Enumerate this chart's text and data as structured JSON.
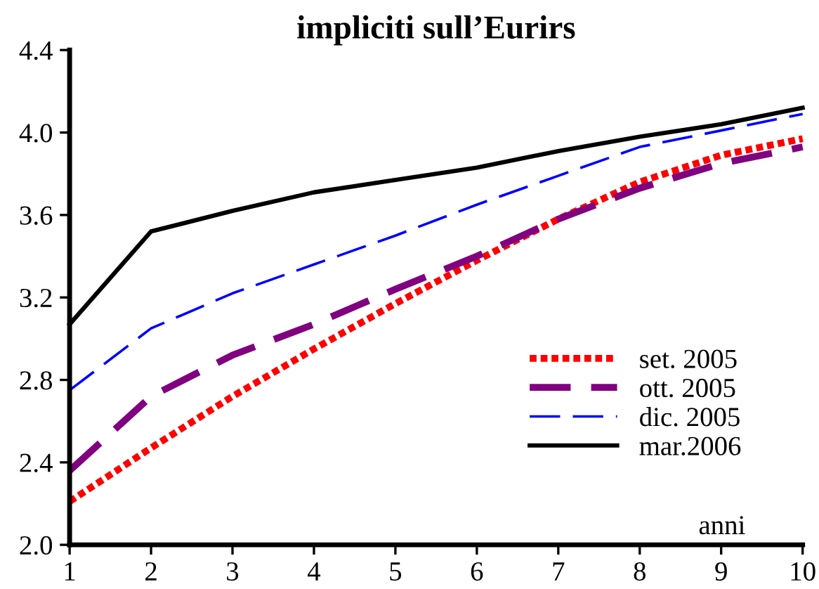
{
  "chart_data": {
    "type": "line",
    "title": "impliciti sull’Eurirs",
    "xlabel": "anni",
    "x": [
      1,
      2,
      3,
      4,
      5,
      6,
      7,
      8,
      9,
      10
    ],
    "series": [
      {
        "name": "set. 2005",
        "color": "#ff0000",
        "line_style": "dotted",
        "values": [
          2.21,
          2.47,
          2.72,
          2.95,
          3.17,
          3.38,
          3.58,
          3.76,
          3.89,
          3.97
        ]
      },
      {
        "name": "ott. 2005",
        "color": "#800080",
        "line_style": "dashed",
        "values": [
          2.36,
          2.72,
          2.92,
          3.07,
          3.24,
          3.4,
          3.58,
          3.73,
          3.85,
          3.93
        ]
      },
      {
        "name": "dic. 2005",
        "color": "#0000ff",
        "line_style": "dashed",
        "values": [
          2.75,
          3.05,
          3.22,
          3.36,
          3.5,
          3.65,
          3.79,
          3.93,
          4.01,
          4.09
        ]
      },
      {
        "name": "mar.2006",
        "color": "#000000",
        "line_style": "solid",
        "values": [
          3.07,
          3.52,
          3.62,
          3.71,
          3.77,
          3.83,
          3.91,
          3.98,
          4.04,
          4.12
        ]
      }
    ],
    "xlim": [
      1,
      10
    ],
    "xticks": [
      1,
      2,
      3,
      4,
      5,
      6,
      7,
      8,
      9,
      10
    ],
    "ylim": [
      2.0,
      4.4
    ],
    "yticks": [
      {
        "value": 2.0,
        "label": "2.0"
      },
      {
        "value": 2.4,
        "label": "2.4"
      },
      {
        "value": 2.8,
        "label": "2.8"
      },
      {
        "value": 3.2,
        "label": "3.2"
      },
      {
        "value": 3.6,
        "label": "3.6"
      },
      {
        "value": 4.0,
        "label": "4.0"
      },
      {
        "value": 4.4,
        "label": "4.4"
      }
    ],
    "grid": false,
    "legend": "bottom right",
    "marker": "none"
  }
}
